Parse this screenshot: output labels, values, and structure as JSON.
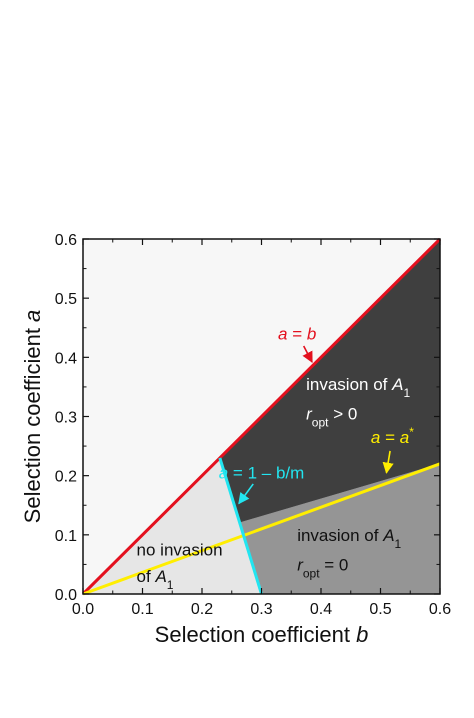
{
  "chart_data": {
    "type": "line",
    "title": "",
    "xlabel": {
      "text": "Selection coefficient ",
      "var": "b"
    },
    "ylabel": {
      "text": "Selection coefficient ",
      "var": "a"
    },
    "xlim": [
      0,
      0.6
    ],
    "ylim": [
      0,
      0.6
    ],
    "xticks": [
      "0.0",
      "0.1",
      "0.2",
      "0.3",
      "0.4",
      "0.5",
      "0.6"
    ],
    "yticks": [
      "0.0",
      "0.1",
      "0.2",
      "0.3",
      "0.4",
      "0.5",
      "0.6"
    ],
    "grid": false,
    "series": [
      {
        "color": "#e3101e",
        "points": [
          [
            0,
            0
          ],
          [
            0.6,
            0.6
          ]
        ]
      },
      {
        "color": "#ffee00",
        "points": [
          [
            0,
            0
          ],
          [
            0.6,
            0.22
          ]
        ]
      },
      {
        "color": "#22e5f0",
        "points": [
          [
            0.23,
            0.23
          ],
          [
            0.3,
            0.0
          ]
        ]
      }
    ],
    "regions": [
      {
        "color": "#f7f7f7",
        "points": [
          [
            0,
            0
          ],
          [
            0,
            0.6
          ],
          [
            0.6,
            0.6
          ]
        ]
      },
      {
        "color": "#e6e6e6",
        "points": [
          [
            0,
            0
          ],
          [
            0.3,
            0
          ],
          [
            0.3,
            0.0
          ]
        ]
      },
      {
        "color": "#3f3f3f",
        "points": [
          [
            0.23,
            0.23
          ],
          [
            0.6,
            0.6
          ],
          [
            0.6,
            0.22
          ],
          [
            0.2623,
            0.1203
          ]
        ]
      },
      {
        "color": "#959595",
        "points": [
          [
            0.2623,
            0.1203
          ],
          [
            0.6,
            0.22
          ],
          [
            0.6,
            0
          ],
          [
            0.3,
            0
          ]
        ]
      },
      {
        "color": "#e6e6e6",
        "points": [
          [
            0,
            0
          ],
          [
            0.23,
            0.23
          ],
          [
            0.3,
            0
          ]
        ]
      }
    ],
    "annotations": [
      {
        "id": "a-equals-b",
        "text": "a = b",
        "color": "#e3101e",
        "at": [
          0.36,
          0.43
        ],
        "arrow_to": [
          0.385,
          0.392
        ]
      },
      {
        "id": "a-equals-astar",
        "text": "a = a*",
        "color": "#ffee00",
        "at": [
          0.52,
          0.255
        ],
        "arrow_to": [
          0.51,
          0.205
        ]
      },
      {
        "id": "a-equals-1-bm",
        "text": "a = 1 – b/m",
        "color": "#22e5f0",
        "at": [
          0.3,
          0.195
        ],
        "arrow_to": [
          0.262,
          0.153
        ]
      }
    ],
    "region_labels": [
      {
        "id": "invasion-ropt-positive",
        "color": "#ffffff",
        "line1": "invasion of A1",
        "line2": "r_opt > 0",
        "at": [
          0.375,
          0.345
        ],
        "at2": [
          0.375,
          0.295
        ]
      },
      {
        "id": "invasion-ropt-zero",
        "color": "#111111",
        "line1": "invasion of A1",
        "line2": "r_opt = 0",
        "at": [
          0.36,
          0.09
        ],
        "at2": [
          0.36,
          0.04
        ]
      },
      {
        "id": "no-invasion",
        "color": "#111111",
        "line1": "no invasion",
        "line2": "of A1",
        "at": [
          0.09,
          0.065
        ],
        "at2": [
          0.09,
          0.02
        ]
      }
    ]
  }
}
